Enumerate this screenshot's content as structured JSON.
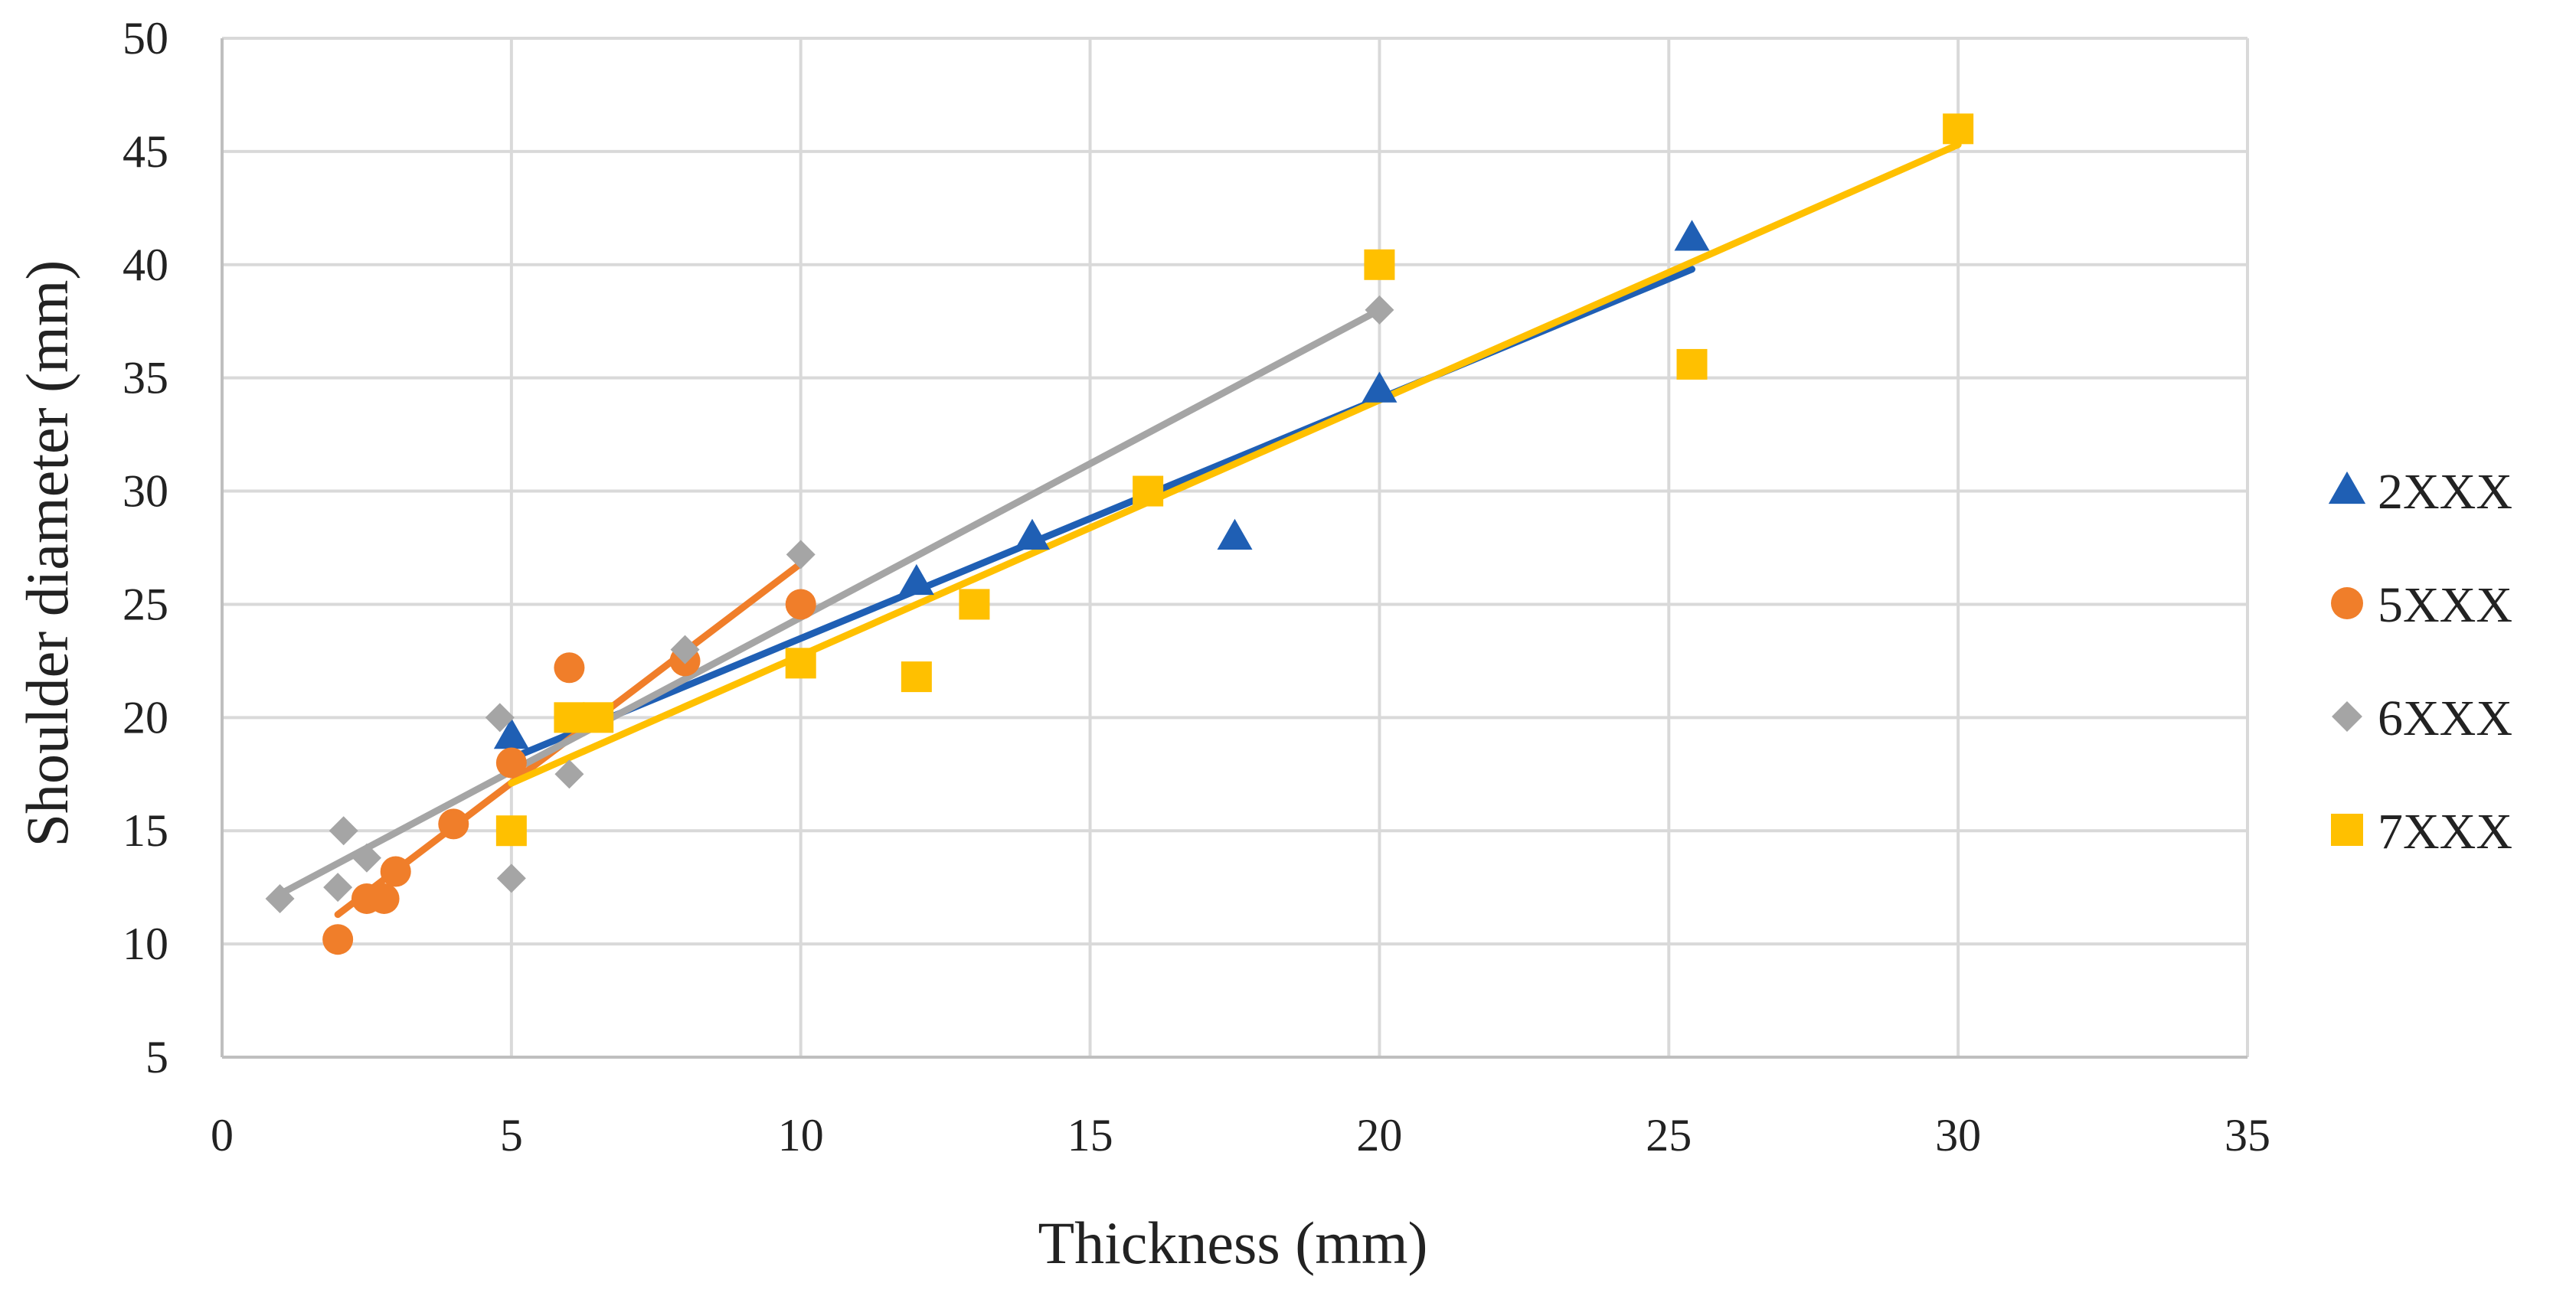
{
  "chart_data": {
    "type": "scatter",
    "title": "",
    "xlabel": "Thickness (mm)",
    "ylabel": "Shoulder diameter (mm)",
    "xlim": [
      0,
      35
    ],
    "ylim": [
      5,
      50
    ],
    "xticks": [
      0,
      5,
      10,
      15,
      20,
      25,
      30,
      35
    ],
    "yticks": [
      5,
      10,
      15,
      20,
      25,
      30,
      35,
      40,
      45,
      50
    ],
    "grid": true,
    "legend_position": "right",
    "series": [
      {
        "name": "2XXX",
        "marker": "triangle",
        "color": "#1F5FB4",
        "points": [
          [
            5,
            19.2
          ],
          [
            12,
            26
          ],
          [
            14,
            28
          ],
          [
            17.5,
            28
          ],
          [
            20,
            34.5
          ],
          [
            25.4,
            41.2
          ]
        ],
        "trendline": [
          [
            5,
            18.2
          ],
          [
            25.4,
            39.8
          ]
        ]
      },
      {
        "name": "5XXX",
        "marker": "circle",
        "color": "#F07E2A",
        "points": [
          [
            2,
            10.2
          ],
          [
            2.5,
            12
          ],
          [
            2.8,
            12
          ],
          [
            3,
            13.2
          ],
          [
            4,
            15.3
          ],
          [
            5,
            18
          ],
          [
            6,
            22.2
          ],
          [
            8,
            22.5
          ],
          [
            10,
            25
          ]
        ],
        "trendline": [
          [
            2,
            11.3
          ],
          [
            10,
            26.8
          ]
        ]
      },
      {
        "name": "6XXX",
        "marker": "diamond",
        "color": "#A5A5A5",
        "points": [
          [
            1,
            12
          ],
          [
            2,
            12.5
          ],
          [
            2.1,
            15
          ],
          [
            2.5,
            13.8
          ],
          [
            4.8,
            20
          ],
          [
            5,
            12.9
          ],
          [
            6,
            17.5
          ],
          [
            8,
            23
          ],
          [
            10,
            27.2
          ],
          [
            20,
            38
          ]
        ],
        "trendline": [
          [
            1,
            12.2
          ],
          [
            20,
            38
          ]
        ]
      },
      {
        "name": "7XXX",
        "marker": "square",
        "color": "#FFC000",
        "points": [
          [
            5,
            15
          ],
          [
            6,
            20
          ],
          [
            6.5,
            20
          ],
          [
            10,
            22.4
          ],
          [
            12,
            21.8
          ],
          [
            13,
            25
          ],
          [
            16,
            30
          ],
          [
            20,
            40
          ],
          [
            25.4,
            35.6
          ],
          [
            30,
            46
          ]
        ],
        "trendline": [
          [
            5,
            17.1
          ],
          [
            30,
            45.3
          ]
        ]
      }
    ]
  }
}
